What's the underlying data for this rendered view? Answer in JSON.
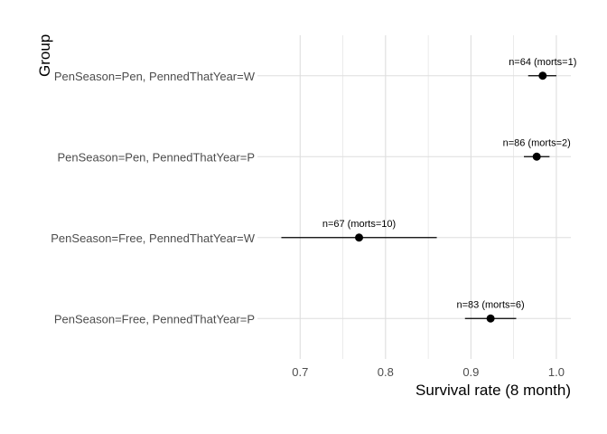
{
  "chart_data": {
    "type": "scatter",
    "subtype": "dot-and-whisker",
    "title": "",
    "xlabel": "Survival rate (8 month)",
    "ylabel": "Group",
    "xlim": [
      0.65,
      1.017
    ],
    "x_ticks": [
      0.7,
      0.8,
      0.9,
      1.0
    ],
    "x_tick_labels": [
      "0.7",
      "0.8",
      "0.9",
      "1.0"
    ],
    "grid": true,
    "legend": "none",
    "point_color": "#000000",
    "grid_color": "#dedede",
    "categories": [
      "PenSeason=Pen, PennedThatYear=W",
      "PenSeason=Pen, PennedThatYear=P",
      "PenSeason=Free, PennedThatYear=W",
      "PenSeason=Free, PennedThatYear=P"
    ],
    "points": [
      {
        "group": "PenSeason=Pen, PennedThatYear=W",
        "estimate": 0.984,
        "lower": 0.967,
        "upper": 1.0,
        "label": "n=64 (morts=1)"
      },
      {
        "group": "PenSeason=Pen, PennedThatYear=P",
        "estimate": 0.977,
        "lower": 0.962,
        "upper": 0.992,
        "label": "n=86 (morts=2)"
      },
      {
        "group": "PenSeason=Free, PennedThatYear=W",
        "estimate": 0.769,
        "lower": 0.678,
        "upper": 0.86,
        "label": "n=67 (morts=10)"
      },
      {
        "group": "PenSeason=Free, PennedThatYear=P",
        "estimate": 0.923,
        "lower": 0.893,
        "upper": 0.953,
        "label": "n=83 (morts=6)"
      }
    ]
  }
}
